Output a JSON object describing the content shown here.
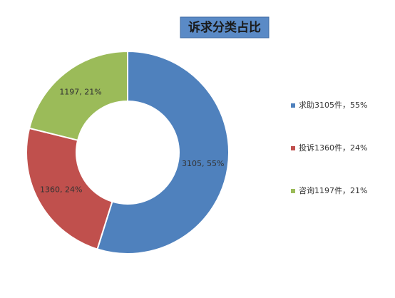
{
  "chart_data": {
    "type": "donut",
    "title": "诉求分类占比",
    "categories": [
      "求助3105件，55%",
      "投诉1360件，24%",
      "咨询1197件，21%"
    ],
    "values": [
      3105,
      1360,
      1197
    ],
    "value_labels": [
      "3105, 55%",
      "1360, 24%",
      "1197, 21%"
    ],
    "colors": [
      "#4f81bd",
      "#c0504d",
      "#9bbb59"
    ],
    "legend": "right"
  }
}
